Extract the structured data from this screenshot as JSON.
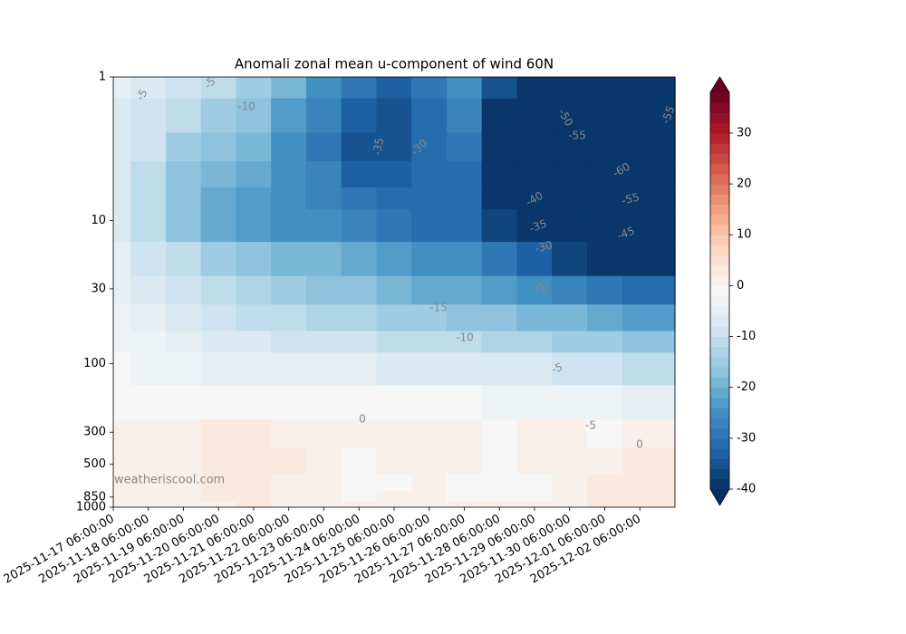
{
  "chart_data": {
    "type": "contourf",
    "title": "Anomali zonal mean u-component of wind 60N",
    "watermark": "weatheriscool.com",
    "x": [
      "2025-11-17 06:00:00",
      "2025-11-18 06:00:00",
      "2025-11-19 06:00:00",
      "2025-11-20 06:00:00",
      "2025-11-21 06:00:00",
      "2025-11-22 06:00:00",
      "2025-11-23 06:00:00",
      "2025-11-24 06:00:00",
      "2025-11-25 06:00:00",
      "2025-11-26 06:00:00",
      "2025-11-27 06:00:00",
      "2025-11-28 06:00:00",
      "2025-11-29 06:00:00",
      "2025-11-30 06:00:00",
      "2025-12-01 06:00:00",
      "2025-12-02 06:00:00"
    ],
    "levels": [
      1,
      2,
      3,
      5,
      7,
      10,
      20,
      30,
      50,
      70,
      100,
      200,
      300,
      500,
      700,
      850,
      1000
    ],
    "ylim": [
      1,
      1000
    ],
    "yticks": [
      1,
      10,
      30,
      100,
      300,
      500,
      850,
      1000
    ],
    "ylog": true,
    "y_inverted": true,
    "z": [
      [
        -6,
        -8,
        -10,
        -12,
        -15,
        -20,
        -25,
        -30,
        -33,
        -30,
        -25,
        -35,
        -45,
        -52,
        -55,
        -55
      ],
      [
        -7,
        -9,
        -12,
        -15,
        -18,
        -23,
        -28,
        -33,
        -35,
        -32,
        -28,
        -40,
        -52,
        -58,
        -60,
        -57
      ],
      [
        -7,
        -10,
        -15,
        -18,
        -20,
        -25,
        -30,
        -35,
        -35,
        -32,
        -30,
        -45,
        -55,
        -60,
        -62,
        -58
      ],
      [
        -8,
        -11,
        -17,
        -20,
        -22,
        -25,
        -28,
        -33,
        -33,
        -31,
        -31,
        -45,
        -55,
        -60,
        -60,
        -56
      ],
      [
        -8,
        -12,
        -18,
        -22,
        -24,
        -25,
        -27,
        -30,
        -31,
        -32,
        -32,
        -42,
        -50,
        -55,
        -56,
        -53
      ],
      [
        -8,
        -12,
        -18,
        -22,
        -24,
        -25,
        -26,
        -28,
        -30,
        -31,
        -32,
        -38,
        -45,
        -50,
        -52,
        -50
      ],
      [
        -6,
        -9,
        -12,
        -16,
        -18,
        -19,
        -20,
        -22,
        -24,
        -25,
        -26,
        -30,
        -34,
        -38,
        -40,
        -40
      ],
      [
        -5,
        -7,
        -10,
        -12,
        -14,
        -15,
        -17,
        -18,
        -20,
        -21,
        -22,
        -24,
        -26,
        -28,
        -30,
        -32
      ],
      [
        -4,
        -6,
        -8,
        -10,
        -11,
        -12,
        -13,
        -14,
        -15,
        -16,
        -17,
        -18,
        -19,
        -20,
        -22,
        -24
      ],
      [
        -3,
        -4,
        -6,
        -7,
        -8,
        -9,
        -9,
        -10,
        -11,
        -11,
        -12,
        -13,
        -14,
        -15,
        -16,
        -18
      ],
      [
        -2,
        -3,
        -4,
        -5,
        -5,
        -6,
        -6,
        -6,
        -7,
        -7,
        -7,
        -8,
        -8,
        -9,
        -10,
        -12
      ],
      [
        -1,
        -1,
        -1,
        -2,
        -2,
        -2,
        -2,
        -2,
        -2,
        -2,
        -2,
        -3,
        -3,
        -3,
        -4,
        -5
      ],
      [
        1,
        1,
        0,
        2,
        3,
        1,
        0,
        0,
        0,
        1,
        0,
        -1,
        1,
        0,
        -1,
        0
      ],
      [
        1,
        0,
        1,
        2,
        3,
        2,
        0,
        -1,
        0,
        1,
        0,
        -1,
        0,
        0,
        1,
        2
      ],
      [
        0,
        0,
        0,
        2,
        3,
        1,
        0,
        -1,
        -1,
        0,
        -1,
        -1,
        -1,
        0,
        2,
        2
      ],
      [
        0,
        0,
        0,
        2,
        2,
        1,
        0,
        -1,
        0,
        0,
        -1,
        -1,
        -1,
        1,
        2,
        2
      ],
      [
        0,
        0,
        0,
        1,
        2,
        1,
        0,
        0,
        0,
        0,
        0,
        0,
        0,
        1,
        2,
        2
      ]
    ],
    "clim": [
      -40,
      38
    ],
    "level_step": 2,
    "colormap": [
      "#053061",
      "#2166ac",
      "#4393c3",
      "#92c5de",
      "#d1e5f0",
      "#f7f7f7",
      "#fddbc7",
      "#f4a582",
      "#d6604d",
      "#b2182b",
      "#67001f"
    ],
    "colorbar_ticks": [
      -40,
      -30,
      -20,
      -10,
      0,
      10,
      20,
      30
    ],
    "contour_labels": [
      -5,
      -5,
      -10,
      -35,
      -30,
      -50,
      -55,
      -60,
      -55,
      -55,
      -40,
      -35,
      -30,
      -45,
      -15,
      -20,
      -10,
      -5,
      -5,
      0,
      0
    ]
  }
}
